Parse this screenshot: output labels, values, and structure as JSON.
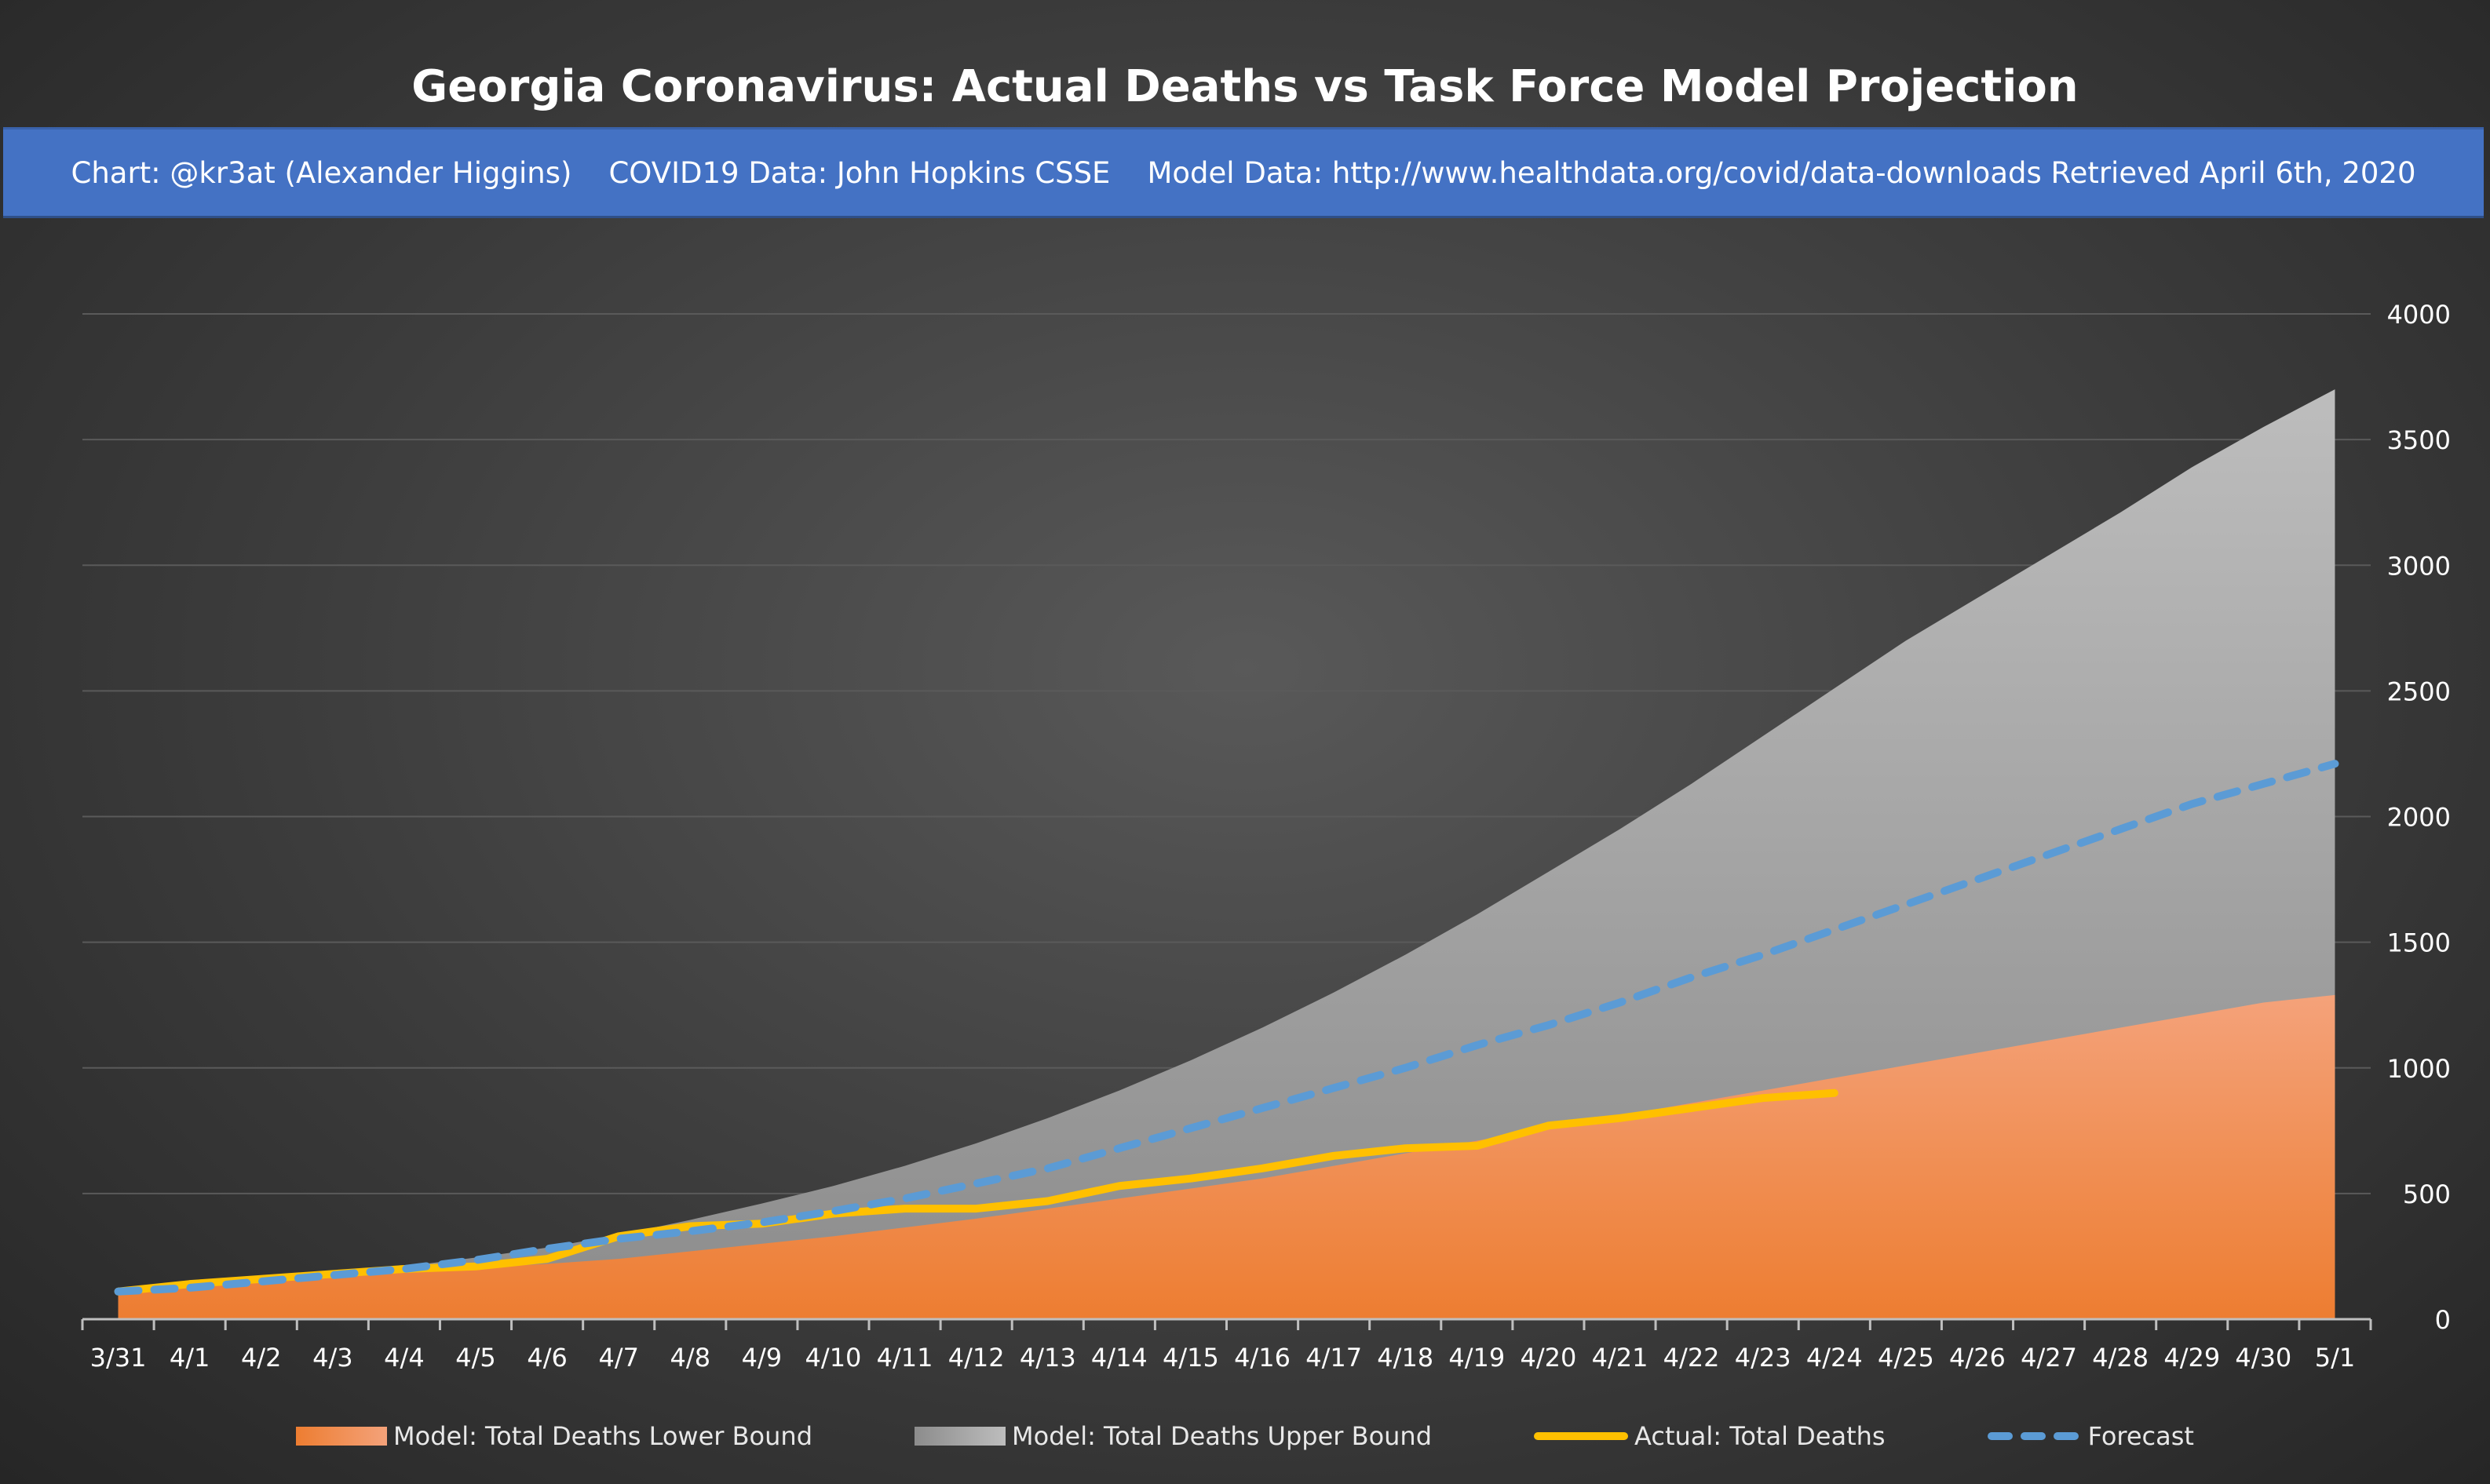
{
  "chart_data": {
    "type": "area",
    "title": "Georgia Coronavirus: Actual Deaths vs Task Force Model Projection",
    "subtitle": "Chart: @kr3at (Alexander Higgins)    COVID19 Data: John Hopkins CSSE    Model Data: http://www.healthdata.org/covid/data-downloads Retrieved April 6th, 2020",
    "categories": [
      "3/31",
      "4/1",
      "4/2",
      "4/3",
      "4/4",
      "4/5",
      "4/6",
      "4/7",
      "4/8",
      "4/9",
      "4/10",
      "4/11",
      "4/12",
      "4/13",
      "4/14",
      "4/15",
      "4/16",
      "4/17",
      "4/18",
      "4/19",
      "4/20",
      "4/21",
      "4/22",
      "4/23",
      "4/24",
      "4/25",
      "4/26",
      "4/27",
      "4/28",
      "4/29",
      "4/30",
      "5/1"
    ],
    "ylim": [
      0,
      4000
    ],
    "yticks": [
      0,
      500,
      1000,
      1500,
      2000,
      2500,
      3000,
      3500,
      4000
    ],
    "y_axis_position": "right",
    "grid": true,
    "legend_position": "bottom",
    "series": [
      {
        "name": "Model: Total Deaths Lower Bound",
        "kind": "area",
        "color": "#ed7d31",
        "values": [
          110,
          135,
          155,
          175,
          190,
          205,
          220,
          240,
          270,
          300,
          330,
          365,
          400,
          440,
          480,
          520,
          560,
          610,
          660,
          710,
          760,
          810,
          860,
          910,
          960,
          1010,
          1060,
          1110,
          1160,
          1210,
          1260,
          1290
        ]
      },
      {
        "name": "Model: Total Deaths Upper Bound",
        "kind": "area",
        "color": "#a6a6a6",
        "values": [
          110,
          140,
          165,
          185,
          210,
          245,
          285,
          335,
          395,
          460,
          530,
          610,
          700,
          800,
          910,
          1030,
          1160,
          1300,
          1450,
          1610,
          1780,
          1950,
          2130,
          2320,
          2510,
          2700,
          2870,
          3040,
          3210,
          3390,
          3550,
          3700
        ]
      },
      {
        "name": "Actual: Total Deaths",
        "kind": "line",
        "color": "#ffc000",
        "values": [
          110,
          140,
          160,
          180,
          200,
          210,
          240,
          330,
          370,
          380,
          420,
          440,
          440,
          470,
          530,
          560,
          600,
          650,
          680,
          690,
          770,
          800,
          840,
          880,
          900,
          null,
          null,
          null,
          null,
          null,
          null,
          null
        ]
      },
      {
        "name": "Forecast",
        "kind": "dashed",
        "color": "#5b9bd5",
        "values": [
          110,
          125,
          150,
          175,
          200,
          235,
          280,
          320,
          350,
          385,
          430,
          480,
          540,
          600,
          680,
          760,
          840,
          920,
          1000,
          1090,
          1170,
          1260,
          1360,
          1450,
          1550,
          1650,
          1750,
          1850,
          1950,
          2050,
          2130,
          2210
        ]
      }
    ]
  },
  "legend": {
    "lower_label": "Model: Total Deaths Lower Bound",
    "upper_label": "Model: Total Deaths Upper Bound",
    "actual_label": "Actual: Total Deaths",
    "forecast_label": "Forecast"
  },
  "colors": {
    "lower_top": "#f4a27a",
    "lower_bottom": "#ed7d31",
    "upper_top": "#bdbdbd",
    "upper_bottom": "#8c8c8c",
    "actual": "#ffc000",
    "forecast": "#5b9bd5",
    "grid": "#5a5a5a",
    "axis": "#bfbfbf",
    "tick_text": "#ffffff"
  }
}
